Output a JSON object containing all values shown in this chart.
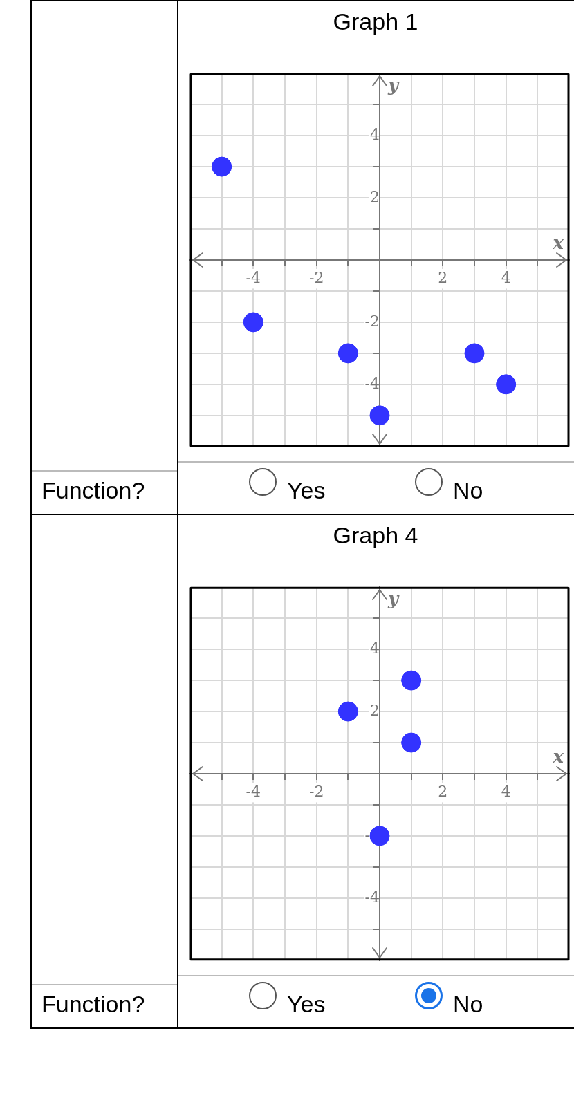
{
  "chart_data": [
    {
      "type": "scatter",
      "title": "Graph 1",
      "xlabel": "x",
      "ylabel": "y",
      "x": [
        -5,
        -4,
        -1,
        0,
        3,
        4
      ],
      "values": [
        3,
        -2,
        -3,
        -5,
        -3,
        -4
      ],
      "color": "#3333ff",
      "marker": "circle",
      "grid": true,
      "legend": false,
      "xlim": [
        -6,
        6
      ],
      "ylim": [
        -6,
        6
      ],
      "xticks": [
        {
          "value": -5,
          "label": null
        },
        -4,
        {
          "value": -3,
          "label": null
        },
        -2,
        {
          "value": -1,
          "label": null
        },
        {
          "value": 1,
          "label": null
        },
        2,
        {
          "value": 3,
          "label": null
        },
        4,
        {
          "value": 5,
          "label": null
        }
      ],
      "yticks": [
        {
          "value": -5,
          "label": null
        },
        -4,
        {
          "value": -3,
          "label": null
        },
        -2,
        {
          "value": -1,
          "label": null
        },
        {
          "value": 1,
          "label": null
        },
        2,
        {
          "value": 3,
          "label": null
        },
        4,
        {
          "value": 5,
          "label": null
        }
      ],
      "annotations": [
        "Function?",
        "Yes",
        "No"
      ]
    },
    {
      "type": "scatter",
      "title": "Graph 4",
      "xlabel": "x",
      "ylabel": "y",
      "x": [
        -1,
        1,
        1,
        0
      ],
      "values": [
        2,
        3,
        1,
        -2
      ],
      "color": "#3333ff",
      "marker": "circle",
      "grid": true,
      "legend": false,
      "xlim": [
        -6,
        6
      ],
      "ylim": [
        -6,
        6
      ],
      "xticks": [
        {
          "value": -5,
          "label": null
        },
        -4,
        {
          "value": -3,
          "label": null
        },
        -2,
        {
          "value": -1,
          "label": null
        },
        {
          "value": 1,
          "label": null
        },
        2,
        {
          "value": 3,
          "label": null
        },
        4,
        {
          "value": 5,
          "label": null
        }
      ],
      "yticks": [
        {
          "value": -5,
          "label": null
        },
        -4,
        {
          "value": -3,
          "label": null
        },
        -2,
        {
          "value": -1,
          "label": null
        },
        {
          "value": 1,
          "label": null
        },
        2,
        {
          "value": 3,
          "label": null
        },
        4,
        {
          "value": 5,
          "label": null
        }
      ],
      "annotations": [
        "Function?",
        "Yes",
        "No"
      ]
    }
  ]
}
